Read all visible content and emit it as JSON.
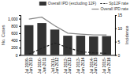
{
  "chart_data": {
    "type": "bar",
    "categories": [
      "Jul 2009-\nJun 2010",
      "Jul 2010-\nJun 2011",
      "Jul 2011-\nJun 2012",
      "Jul 2012-\nJun 2013",
      "Jul 2013-\nJun 2014",
      "Jul 2014-\nJun 2015",
      "Jul 2015-\nJun 2016"
    ],
    "series": [
      {
        "name": "Overall IPD (excluding 12F)",
        "type": "bar",
        "color": "#333333",
        "values": [
          820,
          880,
          700,
          530,
          530,
          510,
          520
        ]
      },
      {
        "name": "Sp12F rate",
        "type": "line",
        "axis": "y2",
        "color": "#222222",
        "line_style": "dashed",
        "values": [
          0.3,
          2.5,
          4.5,
          2.8,
          1.2,
          0.8,
          0.6
        ]
      },
      {
        "name": "Overall IPD rate",
        "type": "line",
        "axis": "y2",
        "color": "#888888",
        "line_style": "solid",
        "values": [
          13.5,
          14.2,
          11.0,
          8.2,
          7.8,
          7.5,
          7.5
        ]
      }
    ],
    "ylabel": "No. Cases",
    "y2label": "Incidence",
    "ylim": [
      0,
      1100
    ],
    "yticks": [
      0,
      200,
      400,
      600,
      800,
      {
        "value": 1000,
        "label": "1,000"
      }
    ],
    "y2lim": [
      0,
      15
    ],
    "y2ticks": [
      0,
      5,
      10,
      15
    ],
    "grid": false,
    "legend": "upper right"
  }
}
